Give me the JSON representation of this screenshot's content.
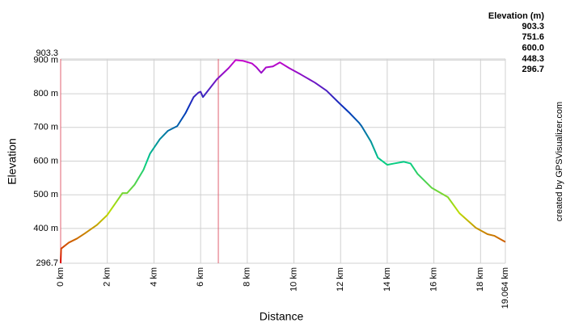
{
  "chart_data": {
    "type": "line",
    "x_label": "Distance",
    "y_label": "Elevation",
    "credit": "created by GPSVisualizer.com",
    "x": [
      0,
      0.02,
      0.35,
      0.7,
      1.03,
      1.55,
      2.0,
      2.4,
      2.65,
      2.85,
      3.17,
      3.55,
      3.83,
      4.25,
      4.6,
      5.0,
      5.35,
      5.7,
      5.9,
      6.0,
      6.1,
      6.7,
      7.2,
      7.5,
      7.8,
      8.2,
      8.4,
      8.6,
      8.8,
      9.1,
      9.4,
      9.8,
      10.3,
      10.9,
      11.4,
      11.9,
      12.4,
      12.8,
      12.9,
      13.3,
      13.6,
      14.0,
      14.3,
      14.7,
      15.0,
      15.3,
      15.9,
      16.6,
      17.1,
      17.8,
      18.3,
      18.6,
      19.064
    ],
    "series": [
      {
        "name": "Elevation",
        "values": [
          296.7,
          340,
          358,
          370,
          385,
          410,
          440,
          480,
          505,
          505,
          530,
          574,
          622,
          665,
          690,
          704,
          742,
          790,
          803,
          806,
          790,
          843,
          876,
          900,
          898,
          890,
          878,
          862,
          878,
          881,
          893,
          876,
          857,
          833,
          809,
          775,
          742,
          713,
          704,
          658,
          610,
          589,
          593,
          598,
          593,
          562,
          521,
          493,
          445,
          402,
          383,
          378,
          360
        ]
      }
    ],
    "xlim": [
      0,
      19.064
    ],
    "ylim": [
      296.7,
      903.3
    ],
    "xticks": [
      {
        "value": 0,
        "label": "0 km"
      },
      {
        "value": 2,
        "label": "2 km"
      },
      {
        "value": 4,
        "label": "4 km"
      },
      {
        "value": 6,
        "label": "6 km"
      },
      {
        "value": 8,
        "label": "8 km"
      },
      {
        "value": 10,
        "label": "10 km"
      },
      {
        "value": 12,
        "label": "12 km"
      },
      {
        "value": 14,
        "label": "14 km"
      },
      {
        "value": 16,
        "label": "16 km"
      },
      {
        "value": 18,
        "label": "18 km"
      },
      {
        "value": 19.064,
        "label": "19.064 km"
      }
    ],
    "yticks": [
      296.7,
      {
        "value": 400,
        "label": "400 m"
      },
      {
        "value": 500,
        "label": "500 m"
      },
      {
        "value": 600,
        "label": "600 m"
      },
      {
        "value": 700,
        "label": "700 m"
      },
      {
        "value": 800,
        "label": "800 m"
      },
      {
        "value": 900,
        "label": "900 m"
      },
      903.3
    ],
    "grid": true,
    "markers": [
      0,
      6.76
    ],
    "marker_color": "#e06070",
    "color_scale": {
      "title": "Elevation (m)",
      "stops": [
        {
          "value": 903.3,
          "color": "#cc00cc"
        },
        {
          "value": 751.6,
          "color": "#0033bb"
        },
        {
          "value": 600,
          "label": "600.0",
          "color": "#00cc88"
        },
        {
          "value": 448.3,
          "color": "#bbdd00"
        },
        {
          "value": 296.7,
          "color": "#dd0000"
        }
      ]
    }
  }
}
